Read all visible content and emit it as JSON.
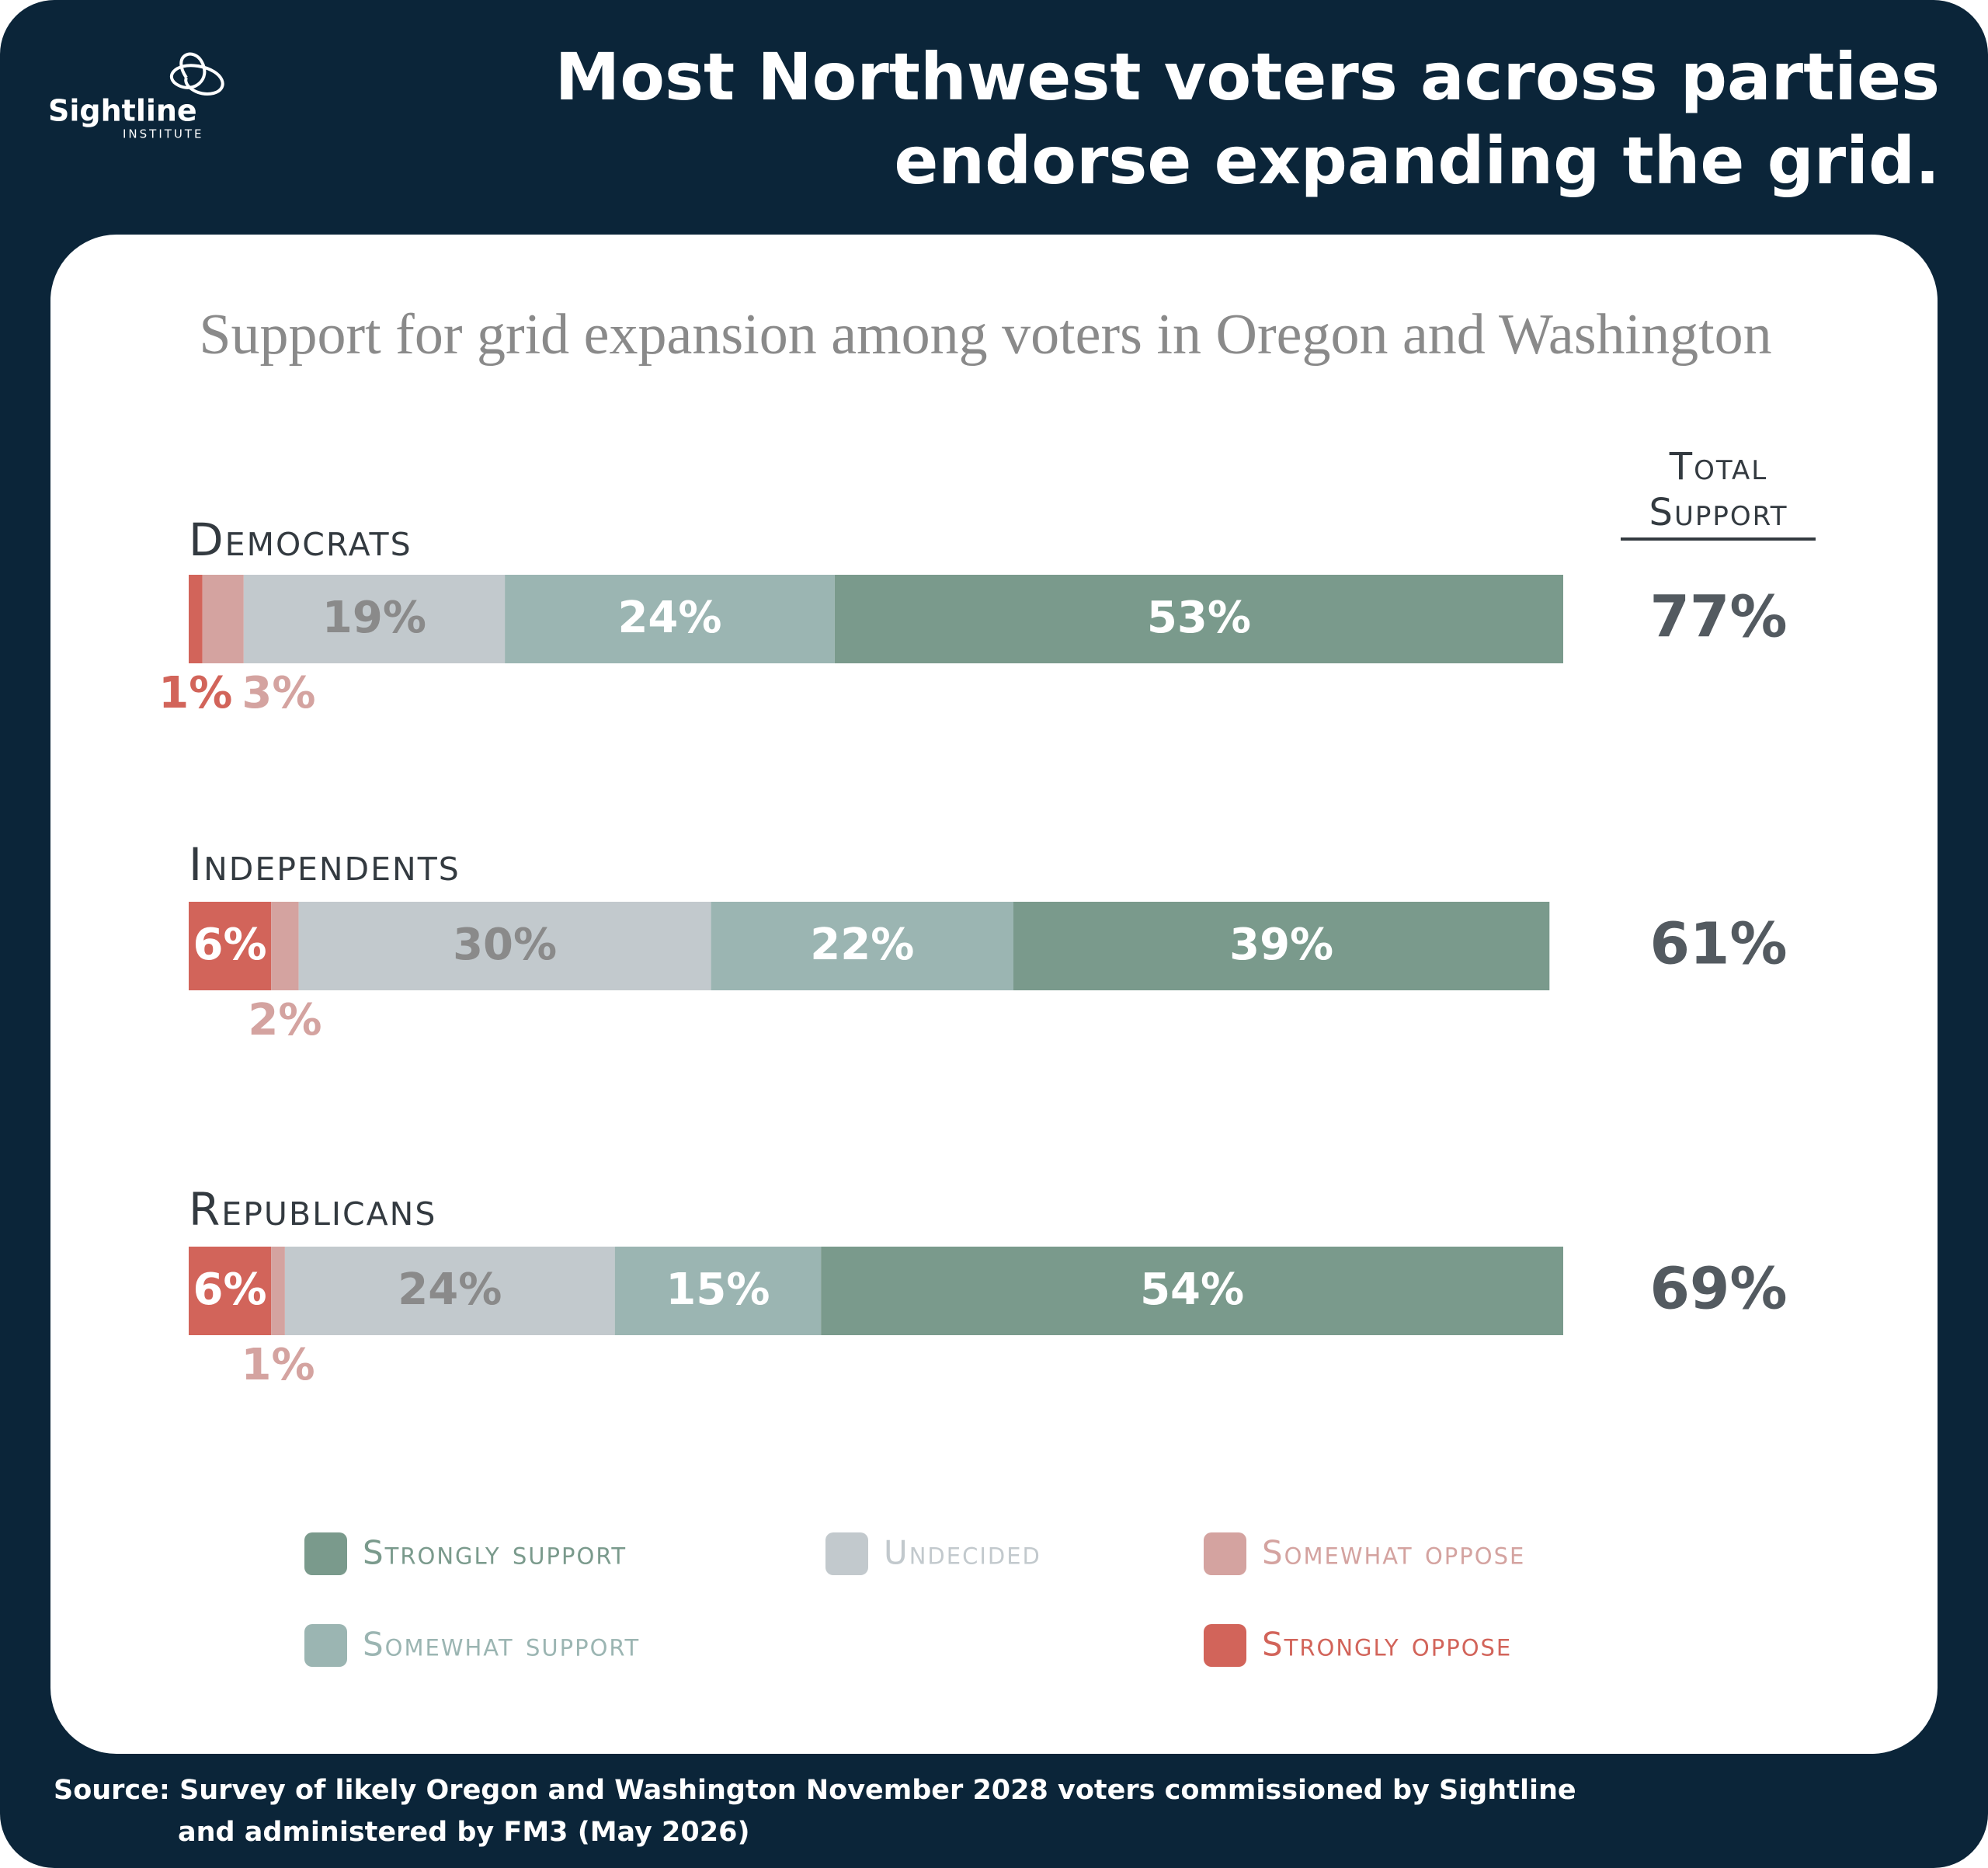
{
  "logo": {
    "name": "Sightline",
    "sub": "INSTITUTE"
  },
  "chart_data": {
    "type": "bar",
    "orientation": "horizontal",
    "stacked": true,
    "title": [
      "Most Northwest voters across parties",
      "endorse expanding the grid."
    ],
    "subtitle": "Support for grid expansion among voters in Oregon and Washington",
    "categories": [
      "Democrats",
      "Independents",
      "Republicans"
    ],
    "series": [
      {
        "name": "Strongly oppose",
        "color": "#d2645a",
        "values": [
          1,
          6,
          6
        ],
        "value_labels": [
          "1%",
          "6%",
          "6%"
        ]
      },
      {
        "name": "Somewhat oppose",
        "color": "#d4a3a0",
        "values": [
          3,
          2,
          1
        ],
        "value_labels": [
          "3%",
          "2%",
          "1%"
        ]
      },
      {
        "name": "Undecided",
        "color": "#c2c9cd",
        "values": [
          19,
          30,
          24
        ],
        "value_labels": [
          "19%",
          "30%",
          "24%"
        ]
      },
      {
        "name": "Somewhat support",
        "color": "#9bb5b2",
        "values": [
          24,
          22,
          15
        ],
        "value_labels": [
          "24%",
          "22%",
          "15%"
        ]
      },
      {
        "name": "Strongly support",
        "color": "#7a9a8c",
        "values": [
          53,
          39,
          54
        ],
        "value_labels": [
          "53%",
          "39%",
          "54%"
        ]
      }
    ],
    "total": {
      "title": [
        "Total",
        "Support"
      ],
      "values": [
        77,
        61,
        69
      ],
      "value_labels": [
        "77%",
        "61%",
        "69%"
      ]
    },
    "source": [
      "Source: Survey of likely Oregon and Washington November 2028 voters commissioned by Sightline",
      "and administered by FM3 (May 2026)"
    ]
  }
}
